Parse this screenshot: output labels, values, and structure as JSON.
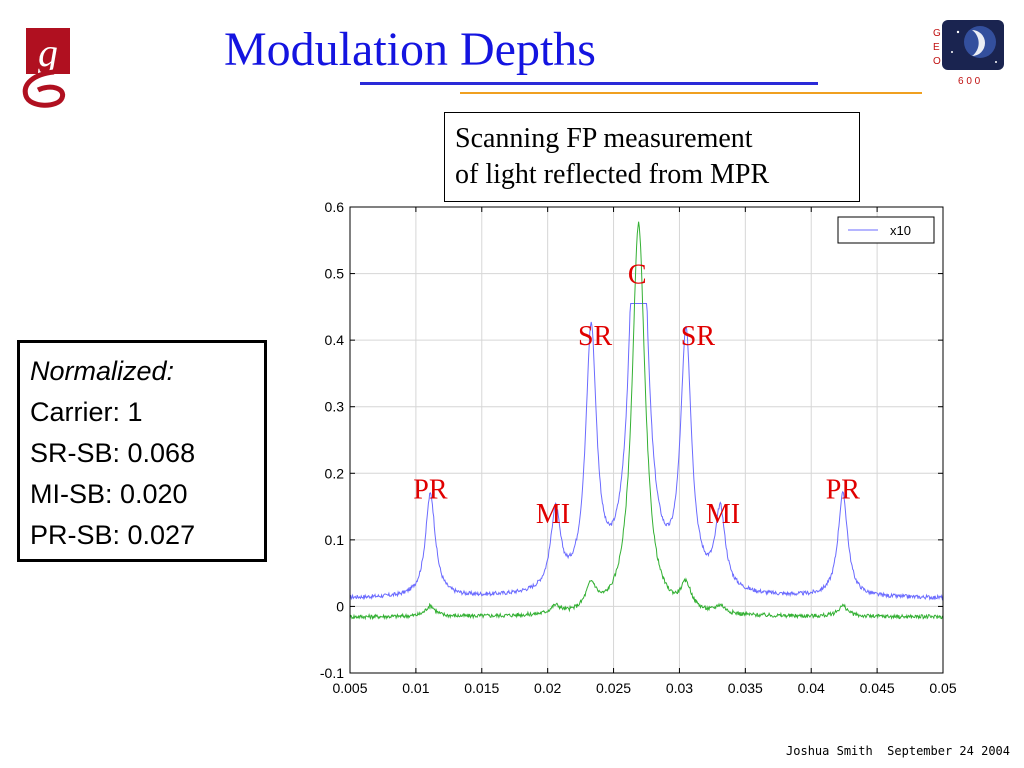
{
  "slide": {
    "title": "Modulation Depths",
    "caption_line1": "Scanning FP measurement",
    "caption_line2": "of light reflected from MPR",
    "footer_author": "Joshua Smith",
    "footer_date": "September 24 2004",
    "logo_left_letter": "g",
    "logo_right_letters": [
      "G",
      "E",
      "O"
    ],
    "logo_right_number": "6 0 0"
  },
  "normalized": {
    "title": "Normalized:",
    "lines": [
      "Carrier: 1",
      "SR-SB: 0.068",
      "MI-SB: 0.020",
      "PR-SB: 0.027"
    ]
  },
  "colors": {
    "title": "#1414e0",
    "annotation": "#e00000",
    "series_x10": "#6b6bff",
    "series_raw": "#33b033"
  },
  "chart_data": {
    "type": "line",
    "xlim": [
      0.005,
      0.05
    ],
    "ylim": [
      -0.1,
      0.6
    ],
    "x_ticks": [
      0.005,
      0.01,
      0.015,
      0.02,
      0.025,
      0.03,
      0.035,
      0.04,
      0.045,
      0.05
    ],
    "x_tick_labels": [
      "0.005",
      "0.01",
      "0.015",
      "0.02",
      "0.025",
      "0.03",
      "0.035",
      "0.04",
      "0.045",
      "0.05"
    ],
    "y_ticks": [
      -0.1,
      0,
      0.1,
      0.2,
      0.3,
      0.4,
      0.5,
      0.6
    ],
    "y_tick_labels": [
      "-0.1",
      "0",
      "0.1",
      "0.2",
      "0.3",
      "0.4",
      "0.5",
      "0.6"
    ],
    "grid": true,
    "legend": {
      "entries": [
        "x10"
      ],
      "position": "top-right"
    },
    "series": [
      {
        "name": "x10",
        "baseline": 0.012,
        "clip_at": 0.455,
        "peaks": [
          {
            "x": 0.0111,
            "height": 0.155,
            "width": 0.00045
          },
          {
            "x": 0.0206,
            "height": 0.118,
            "width": 0.00045
          },
          {
            "x": 0.0233,
            "height": 0.385,
            "width": 0.0005
          },
          {
            "x": 0.0269,
            "height": 0.9,
            "width": 0.0006
          },
          {
            "x": 0.0305,
            "height": 0.38,
            "width": 0.0005
          },
          {
            "x": 0.0331,
            "height": 0.118,
            "width": 0.00045
          },
          {
            "x": 0.0424,
            "height": 0.155,
            "width": 0.00045
          }
        ]
      },
      {
        "name": "",
        "baseline": -0.016,
        "clip_at": null,
        "peaks": [
          {
            "x": 0.0111,
            "height": 0.016,
            "width": 0.00045
          },
          {
            "x": 0.0206,
            "height": 0.012,
            "width": 0.00045
          },
          {
            "x": 0.0233,
            "height": 0.038,
            "width": 0.0005
          },
          {
            "x": 0.0269,
            "height": 0.59,
            "width": 0.0006
          },
          {
            "x": 0.0305,
            "height": 0.038,
            "width": 0.0005
          },
          {
            "x": 0.0331,
            "height": 0.012,
            "width": 0.00045
          },
          {
            "x": 0.0424,
            "height": 0.016,
            "width": 0.00045
          }
        ]
      }
    ],
    "annotations": [
      {
        "text": "C",
        "x": 0.0268,
        "y": 0.485
      },
      {
        "text": "SR",
        "x": 0.0236,
        "y": 0.393
      },
      {
        "text": "SR",
        "x": 0.0314,
        "y": 0.393
      },
      {
        "text": "PR",
        "x": 0.0111,
        "y": 0.162
      },
      {
        "text": "PR",
        "x": 0.0424,
        "y": 0.162
      },
      {
        "text": "MI",
        "x": 0.0204,
        "y": 0.125
      },
      {
        "text": "MI",
        "x": 0.0333,
        "y": 0.125
      }
    ]
  }
}
